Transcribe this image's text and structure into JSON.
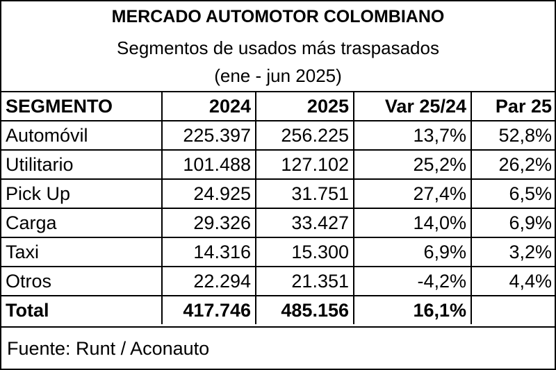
{
  "header": {
    "title": "MERCADO AUTOMOTOR COLOMBIANO",
    "subtitle": "Segmentos de usados más traspasados",
    "period": "(ene - jun 2025)"
  },
  "table": {
    "columns": [
      "SEGMENTO",
      "2024",
      "2025",
      "Var 25/24",
      "Par 25"
    ],
    "rows": [
      [
        "Automóvil",
        "225.397",
        "256.225",
        "13,7%",
        "52,8%"
      ],
      [
        "Utilitario",
        "101.488",
        "127.102",
        "25,2%",
        "26,2%"
      ],
      [
        "Pick Up",
        "24.925",
        "31.751",
        "27,4%",
        "6,5%"
      ],
      [
        "Carga",
        "29.326",
        "33.427",
        "14,0%",
        "6,9%"
      ],
      [
        "Taxi",
        "14.316",
        "15.300",
        "6,9%",
        "3,2%"
      ],
      [
        "Otros",
        "22.294",
        "21.351",
        "-4,2%",
        "4,4%"
      ]
    ],
    "total": [
      "Total",
      "417.746",
      "485.156",
      "16,1%"
    ]
  },
  "footer": {
    "source": "Fuente: Runt / Aconauto"
  }
}
